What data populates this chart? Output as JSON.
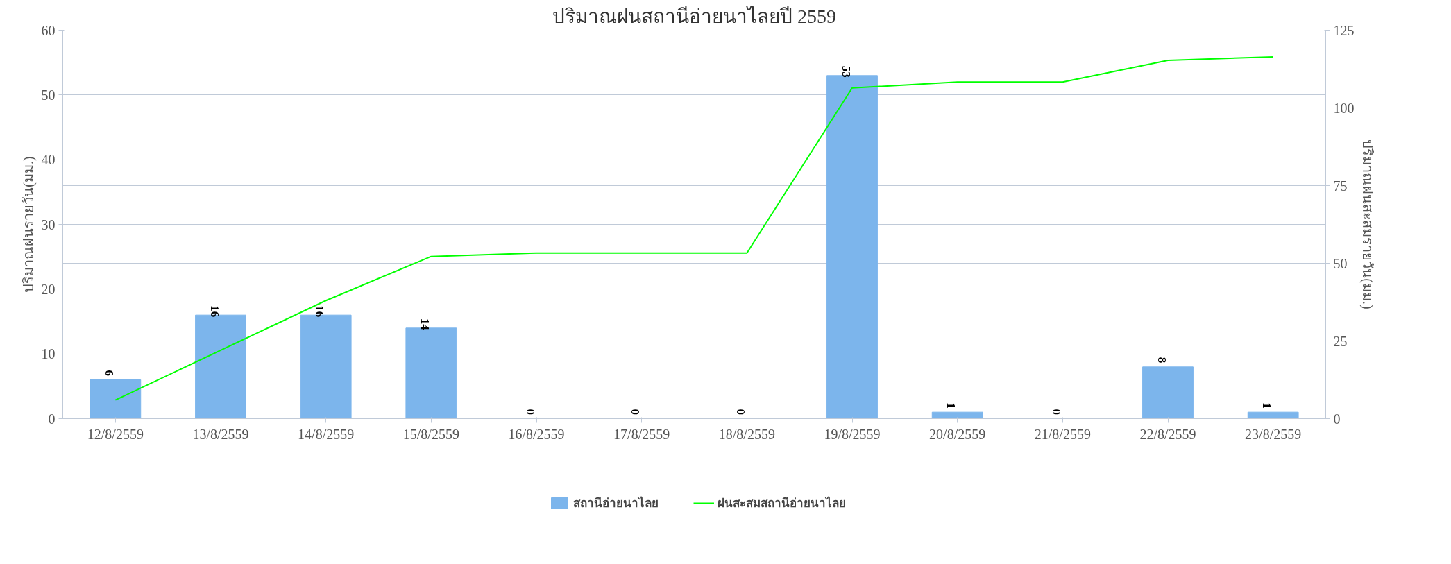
{
  "chart_data": {
    "type": "bar",
    "title": "ปริมาณฝนสถานีอ่ายนาไลยปี 2559",
    "ylabel": "ปริมาณฝนรายวัน(มม.)",
    "y2label": "ปริมาณฝนสะสมรายวัน(มม.)",
    "categories": [
      "12/8/2559",
      "13/8/2559",
      "14/8/2559",
      "15/8/2559",
      "16/8/2559",
      "17/8/2559",
      "18/8/2559",
      "19/8/2559",
      "20/8/2559",
      "21/8/2559",
      "22/8/2559",
      "23/8/2559"
    ],
    "series": [
      {
        "name": "สถานีอ่ายนาไลย",
        "color": "#7cb5ec",
        "values": [
          6,
          16,
          16,
          14,
          0,
          0,
          0,
          53,
          1,
          0,
          8,
          1
        ],
        "data_labels": true
      },
      {
        "name": "ฝนสะสมสถานีอ่ายนาไลย",
        "type": "line",
        "axis": "y2",
        "color": "#00ff00",
        "values": [
          6,
          22,
          38,
          52.2,
          53.3,
          53.3,
          53.3,
          106.4,
          108.3,
          108.3,
          115.3,
          116.4
        ]
      }
    ],
    "ylim": [
      0,
      60
    ],
    "yticks": [
      0,
      10,
      20,
      30,
      40,
      50,
      60
    ],
    "y2lim": [
      0,
      125
    ],
    "y2ticks": [
      0,
      25,
      50,
      75,
      100,
      125
    ],
    "grid": true,
    "legend": "bottom",
    "marker": "none",
    "line_style": "solid"
  }
}
